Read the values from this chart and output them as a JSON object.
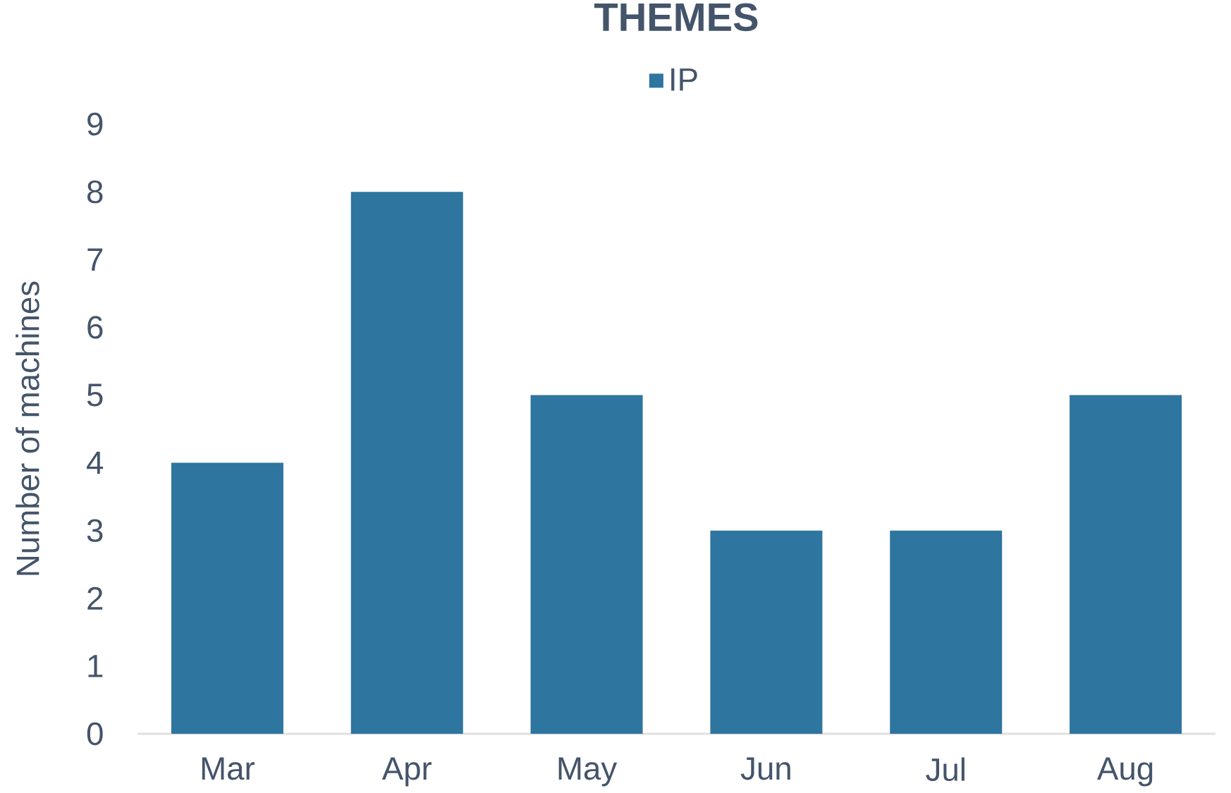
{
  "chart_data": {
    "type": "bar",
    "title": "THEMES",
    "ylabel": "Number of machines",
    "categories": [
      "Mar",
      "Apr",
      "May",
      "Jun",
      "Jul",
      "Aug"
    ],
    "series": [
      {
        "name": "IP",
        "color": "#2e75a0",
        "values": [
          4,
          8,
          5,
          3,
          3,
          5
        ]
      }
    ],
    "ylim": [
      0,
      9
    ],
    "yticks": [
      0,
      1,
      2,
      3,
      4,
      5,
      6,
      7,
      8,
      9
    ],
    "legend": "top"
  }
}
